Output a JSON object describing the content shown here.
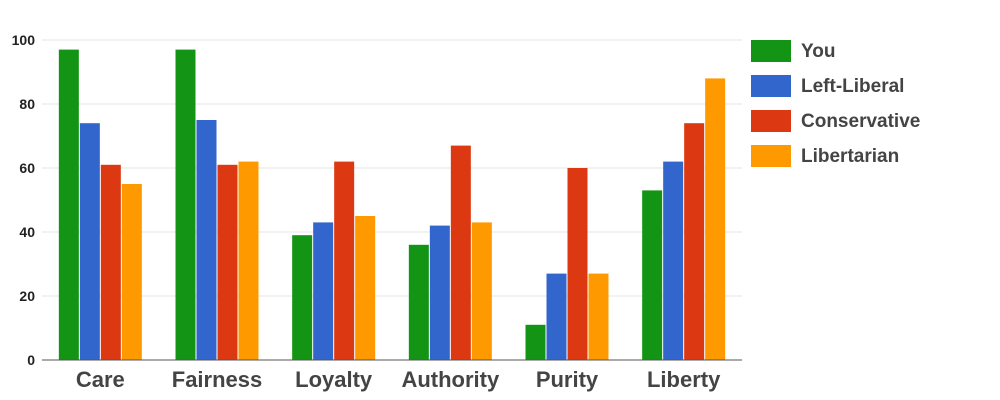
{
  "chart_data": {
    "type": "bar",
    "categories": [
      "Care",
      "Fairness",
      "Loyalty",
      "Authority",
      "Purity",
      "Liberty"
    ],
    "series": [
      {
        "name": "You",
        "color": "#149414",
        "values": [
          97,
          97,
          39,
          36,
          11,
          53
        ]
      },
      {
        "name": "Left-Liberal",
        "color": "#3366cc",
        "values": [
          74,
          75,
          43,
          42,
          27,
          62
        ]
      },
      {
        "name": "Conservative",
        "color": "#dc3912",
        "values": [
          61,
          61,
          62,
          67,
          60,
          74
        ]
      },
      {
        "name": "Libertarian",
        "color": "#ff9900",
        "values": [
          55,
          62,
          45,
          43,
          27,
          88
        ]
      }
    ],
    "ylim": [
      0,
      100
    ],
    "yticks": [
      0,
      20,
      40,
      60,
      80,
      100
    ],
    "grid": true,
    "legend_position": "right"
  }
}
